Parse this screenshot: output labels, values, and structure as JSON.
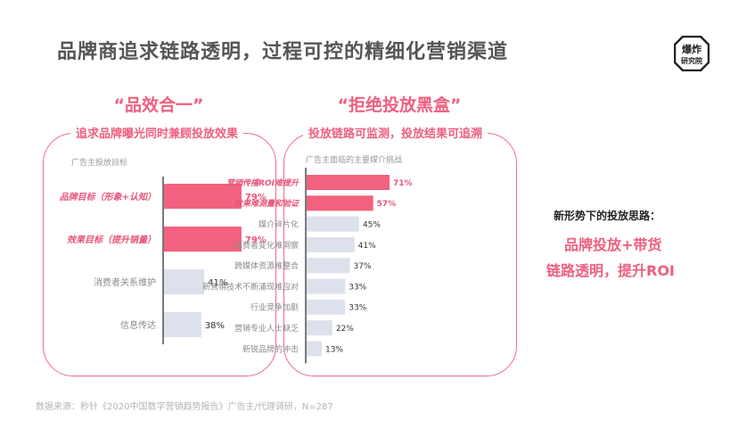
{
  "header": {
    "title": "品牌商追求链路透明，过程可控的精细化营销渠道",
    "logo_line1": "爆炸",
    "logo_line2": "研究院"
  },
  "left_panel": {
    "quote": "“品效合一”",
    "subtitle": "追求品牌曝光同时兼顾投放效果",
    "caption": "广告主投放目标"
  },
  "right_panel": {
    "quote": "“拒绝投放黑盒”",
    "subtitle": "投放链路可监测，投放结果可追溯",
    "caption": "广告主面临的主要媒介挑战"
  },
  "side": {
    "heading": "新形势下的投放思路：",
    "line1": "品牌投放+带货",
    "line2": "链路透明，提升ROI"
  },
  "source": "数据来源：秒针《2020中国数字营销趋势报告》广告主/代理调研，N=287",
  "colors": {
    "accent": "#f2617d",
    "muted": "#dde1ec",
    "accent_text": "#e8557a"
  },
  "chart_data": [
    {
      "type": "bar",
      "orientation": "horizontal",
      "categories": [
        "品牌目标（形象+认知）",
        "效果目标（提升销量）",
        "消费者关系维护",
        "信息传达"
      ],
      "values": [
        79,
        79,
        41,
        38
      ],
      "data_labels": [
        "79%",
        "79%",
        "41%",
        "38%"
      ],
      "highlighted": [
        true,
        true,
        false,
        false
      ],
      "xlim": [
        0,
        100
      ]
    },
    {
      "type": "bar",
      "orientation": "horizontal",
      "categories": [
        "营销传播ROI难提升",
        "效果难测量和验证",
        "媒介碎片化",
        "消费者变化难洞察",
        "跨媒体资源难整合",
        "新营销技术不断涌现难应对",
        "行业竞争加剧",
        "营销专业人士缺乏",
        "新锐品牌的冲击"
      ],
      "values": [
        71,
        57,
        45,
        41,
        37,
        33,
        33,
        22,
        13
      ],
      "data_labels": [
        "71%",
        "57%",
        "45%",
        "41%",
        "37%",
        "33%",
        "33%",
        "22%",
        "13%"
      ],
      "highlighted": [
        true,
        true,
        false,
        false,
        false,
        false,
        false,
        false,
        false
      ],
      "xlim": [
        0,
        100
      ]
    }
  ]
}
